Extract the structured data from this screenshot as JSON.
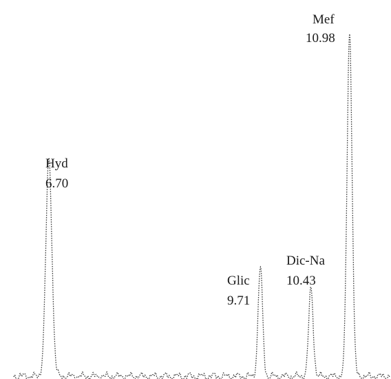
{
  "chart_data": {
    "type": "line",
    "title": "",
    "xlabel": "",
    "ylabel": "",
    "line_style": "dotted",
    "line_color": "#3a3a3a",
    "baseline_level": 0,
    "peaks": [
      {
        "name": "Hyd",
        "retention_time": "6.70",
        "height": 0.62
      },
      {
        "name": "Glic",
        "retention_time": "9.71",
        "height": 0.31
      },
      {
        "name": "Dic-Na",
        "retention_time": "10.43",
        "height": 0.25
      },
      {
        "name": "Mef",
        "retention_time": "10.98",
        "height": 0.98
      }
    ]
  }
}
